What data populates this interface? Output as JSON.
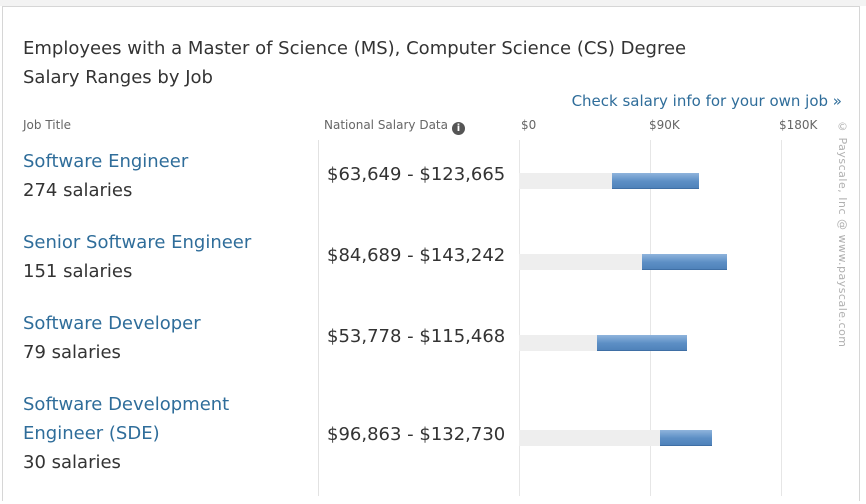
{
  "title": {
    "line1": "Employees with a Master of Science (MS), Computer Science (CS) Degree",
    "line2": "Salary Ranges by Job"
  },
  "check_link": "Check salary info for your own job »",
  "headers": {
    "job_title": "Job Title",
    "national": "National Salary Data"
  },
  "watermark": "© Payscale, Inc  @ www.payscale.com",
  "colors": {
    "link": "#2f6d9a",
    "bar": "#5c8fc5",
    "track": "#eeeeee"
  },
  "chart_data": {
    "type": "bar",
    "orientation": "horizontal-range",
    "axis_ticks": [
      "$0",
      "$90K",
      "$180K"
    ],
    "xlim": [
      0,
      180000
    ],
    "categories": [
      "Software Engineer",
      "Senior Software Engineer",
      "Software Developer",
      "Software Development Engineer (SDE)"
    ],
    "rows": [
      {
        "job": "Software Engineer",
        "count_label": "274 salaries",
        "range_label": "$63,649 - $123,665",
        "low": 63649,
        "high": 123665,
        "track_end": 123665
      },
      {
        "job": "Senior Software Engineer",
        "count_label": "151 salaries",
        "range_label": "$84,689 - $143,242",
        "low": 84689,
        "high": 143242,
        "track_end": 143242
      },
      {
        "job": "Software Developer",
        "count_label": "79 salaries",
        "range_label": "$53,778 - $115,468",
        "low": 53778,
        "high": 115468,
        "track_end": 115468
      },
      {
        "job": "Software Development Engineer (SDE)",
        "job_line1": "Software Development",
        "job_line2": "Engineer (SDE)",
        "count_label": "30 salaries",
        "range_label": "$96,863 - $132,730",
        "low": 96863,
        "high": 132730,
        "track_end": 132730
      }
    ]
  }
}
